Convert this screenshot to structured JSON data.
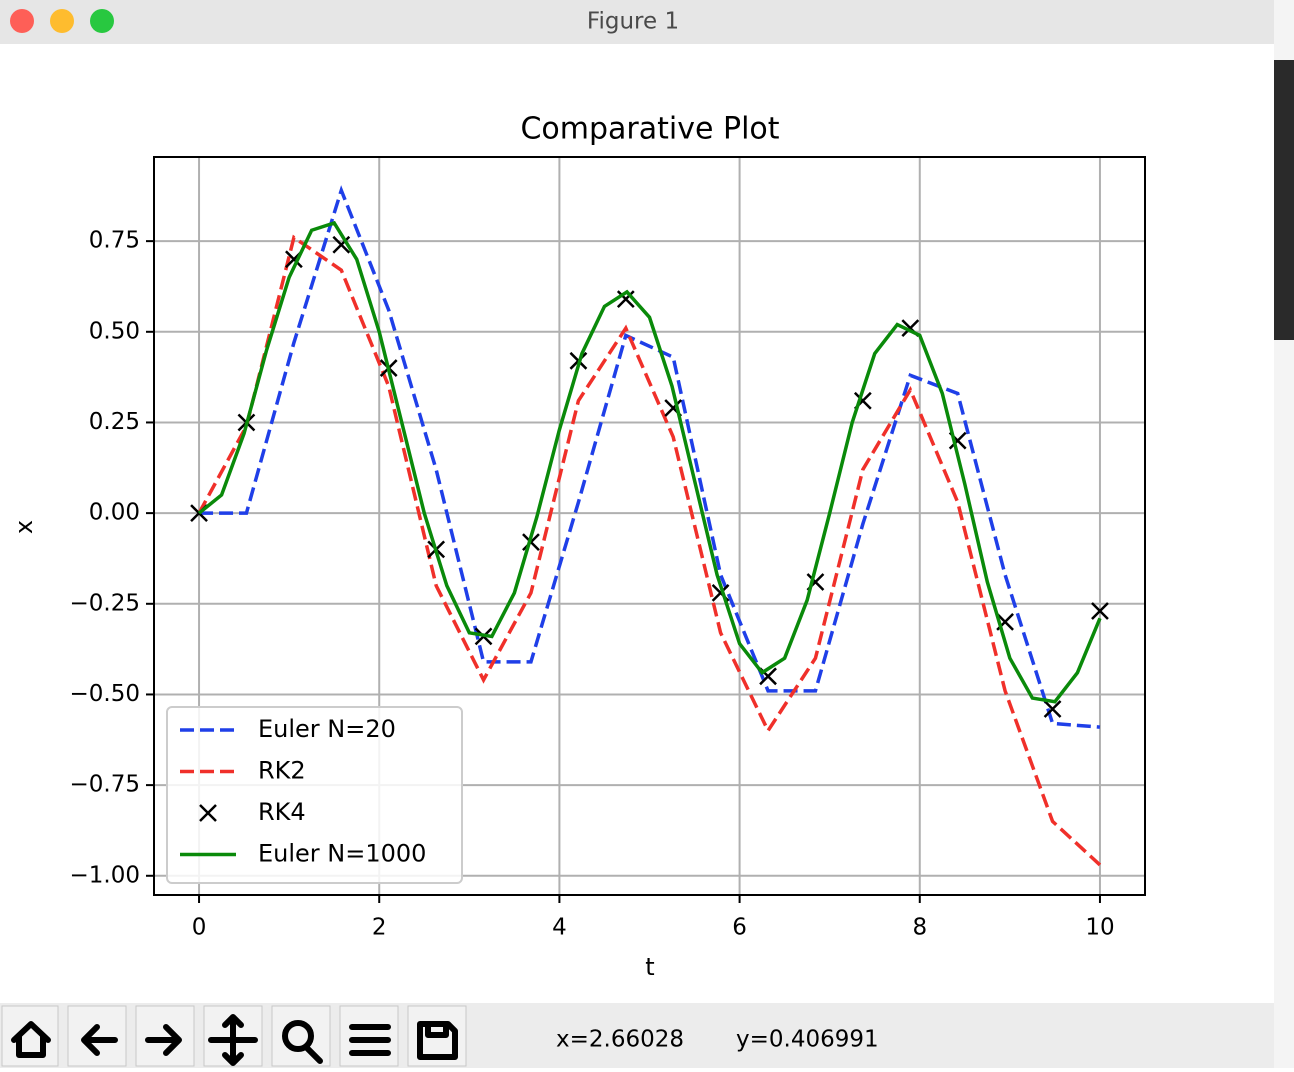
{
  "window": {
    "title": "Figure 1"
  },
  "status": {
    "x": "x=2.66028",
    "y": "y=0.406991"
  },
  "chart_data": {
    "type": "line",
    "title": "Comparative Plot",
    "x_label": "t",
    "y_label": "x",
    "x": [
      0,
      0.526,
      1.053,
      1.579,
      2.105,
      2.632,
      3.158,
      3.684,
      4.211,
      4.737,
      5.263,
      5.789,
      6.316,
      6.842,
      7.368,
      7.895,
      8.421,
      8.947,
      9.474,
      10
    ],
    "series": [
      {
        "name": "Euler N=20",
        "color": "#1f3fe8",
        "style": "dashed",
        "values": [
          0,
          0,
          0.47,
          0.89,
          0.56,
          0.12,
          -0.41,
          -0.41,
          0.03,
          0.49,
          0.43,
          -0.17,
          -0.49,
          -0.49,
          -0.03,
          0.38,
          0.33,
          -0.17,
          -0.58,
          -0.59
        ]
      },
      {
        "name": "RK2",
        "color": "#f0302a",
        "style": "dashed",
        "values": [
          0,
          0.24,
          0.76,
          0.67,
          0.35,
          -0.2,
          -0.46,
          -0.22,
          0.31,
          0.51,
          0.21,
          -0.33,
          -0.6,
          -0.4,
          0.12,
          0.34,
          0.03,
          -0.49,
          -0.85,
          -0.97
        ]
      },
      {
        "name": "RK4",
        "color": "#000000",
        "style": "none",
        "marker": "x",
        "values": [
          0,
          0.25,
          0.7,
          0.74,
          0.4,
          -0.1,
          -0.34,
          -0.08,
          0.42,
          0.59,
          0.29,
          -0.22,
          -0.45,
          -0.19,
          0.31,
          0.51,
          0.2,
          -0.3,
          -0.54,
          -0.27
        ]
      },
      {
        "name": "Euler N=1000",
        "color": "#0a8a0a",
        "style": "solid",
        "x": [
          0,
          0.25,
          0.5,
          0.75,
          1,
          1.25,
          1.5,
          1.75,
          2,
          2.25,
          2.5,
          2.75,
          3,
          3.25,
          3.5,
          3.75,
          4,
          4.25,
          4.5,
          4.75,
          5,
          5.25,
          5.5,
          5.75,
          6,
          6.25,
          6.5,
          6.75,
          7,
          7.25,
          7.5,
          7.75,
          8,
          8.25,
          8.5,
          8.75,
          9,
          9.25,
          9.5,
          9.75,
          10
        ],
        "values": [
          0,
          0.05,
          0.22,
          0.45,
          0.65,
          0.78,
          0.8,
          0.7,
          0.5,
          0.25,
          0,
          -0.2,
          -0.33,
          -0.34,
          -0.22,
          -0.01,
          0.23,
          0.44,
          0.57,
          0.61,
          0.54,
          0.35,
          0.09,
          -0.17,
          -0.36,
          -0.44,
          -0.4,
          -0.24,
          0,
          0.25,
          0.44,
          0.52,
          0.49,
          0.33,
          0.08,
          -0.19,
          -0.4,
          -0.51,
          -0.52,
          -0.44,
          -0.29
        ]
      }
    ],
    "xlim": [
      -0.5,
      10.5
    ],
    "ylim": [
      -1.053,
      0.982
    ],
    "xticks": [
      0,
      2,
      4,
      6,
      8,
      10
    ],
    "yticks": [
      {
        "value": -1,
        "label": "−1.00"
      },
      {
        "value": -0.75,
        "label": "−0.75"
      },
      {
        "value": -0.5,
        "label": "−0.50"
      },
      {
        "value": -0.25,
        "label": "−0.25"
      },
      {
        "value": 0,
        "label": "0.00"
      },
      0.25,
      {
        "value": 0.5,
        "label": "0.50"
      },
      0.75
    ],
    "grid": true,
    "legend": "lower left"
  }
}
